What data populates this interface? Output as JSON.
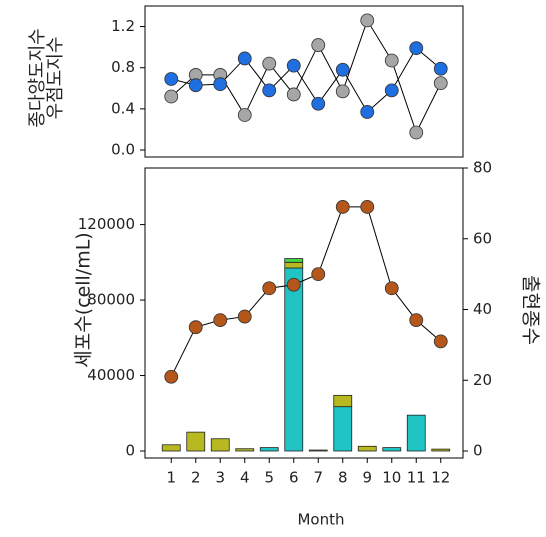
{
  "chart_data": [
    {
      "type": "line",
      "ylim": [
        0,
        1.4
      ],
      "yticks": [
        {
          "value": 0,
          "label": "0.0"
        },
        0.4,
        0.8,
        1.2
      ],
      "series": [
        {
          "name": "종다양도지수",
          "color": "#a6a6a6",
          "values": [
            0.52,
            0.73,
            0.73,
            0.34,
            0.84,
            0.54,
            1.02,
            0.57,
            1.26,
            0.87,
            0.17,
            0.65
          ]
        },
        {
          "name": "우점도지수",
          "color": "#1f6fe0",
          "values": [
            0.69,
            0.63,
            0.64,
            0.89,
            0.58,
            0.82,
            0.45,
            0.78,
            0.37,
            0.58,
            0.99,
            0.79
          ]
        }
      ]
    },
    {
      "type": "bar",
      "xlabel": "Month",
      "ylabel": "세포수(cell/mL)",
      "y2label": "출현종수",
      "categories": [
        "1",
        "2",
        "3",
        "4",
        "5",
        "6",
        "7",
        "8",
        "9",
        "10",
        "11",
        "12"
      ],
      "ylim": [
        0,
        150000
      ],
      "yticks": [
        0,
        40000,
        80000,
        120000
      ],
      "y2lim": [
        0,
        80
      ],
      "y2ticks": [
        0,
        20,
        40,
        60,
        80
      ],
      "series": [
        {
          "color": "#20c4c4",
          "values": [
            0,
            0,
            0,
            0,
            1800,
            97000,
            0,
            23500,
            0,
            1800,
            19000,
            0
          ]
        },
        {
          "color": "#b8b820",
          "values": [
            3300,
            10000,
            6500,
            1200,
            0,
            3000,
            500,
            6000,
            2500,
            0,
            0,
            1000
          ]
        },
        {
          "color": "#44d444",
          "values": [
            0,
            0,
            0,
            0,
            0,
            2000,
            0,
            0,
            0,
            0,
            0,
            0
          ]
        },
        {
          "color": "#b5561a",
          "axis": "y2",
          "values": [
            21,
            35,
            37,
            38,
            46,
            47,
            50,
            69,
            69,
            46,
            37,
            31
          ]
        }
      ]
    }
  ]
}
